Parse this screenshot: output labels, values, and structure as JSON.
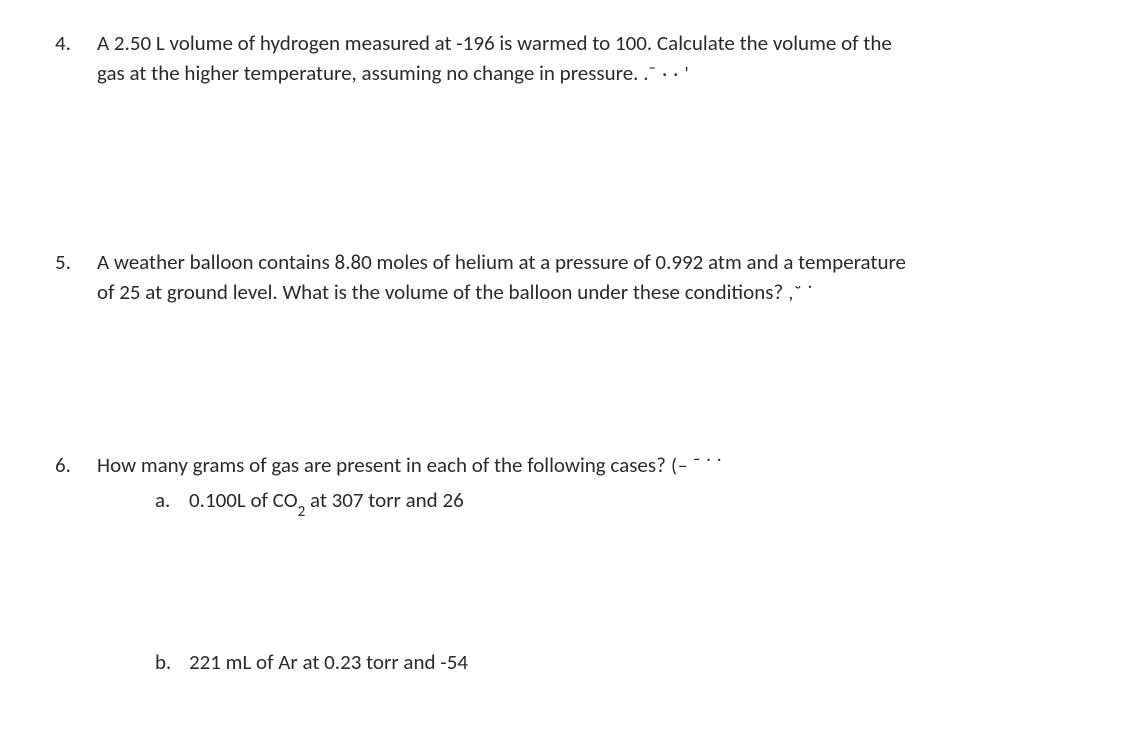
{
  "questions": {
    "q4": {
      "number": "4.",
      "text_a": "A 2.50 L volume of hydrogen measured at -196 is warmed to 100. Calculate the volume of the",
      "text_b": "gas at the higher temperature, assuming no change in pressure. .",
      "trail": "¯  · ·  '"
    },
    "q5": {
      "number": "5.",
      "text_a": "A weather balloon contains 8.80 moles of helium at a pressure of 0.992 atm and a temperature",
      "text_b": "of 25 at ground level. What is the volume of the balloon under these conditions?",
      "trail": " ,˘     ˙"
    },
    "q6": {
      "number": "6.",
      "text": "How many grams of gas are present in each of the following cases?",
      "trail": " (‒ ˉ  ˙ ˙",
      "sub_a": {
        "letter": "a.",
        "pre": "0.100L of CO",
        "sub": "2",
        "post": " at 307 torr and 26"
      },
      "sub_b": {
        "letter": "b.",
        "text": "221 mL of Ar at 0.23 torr and -54"
      }
    }
  }
}
